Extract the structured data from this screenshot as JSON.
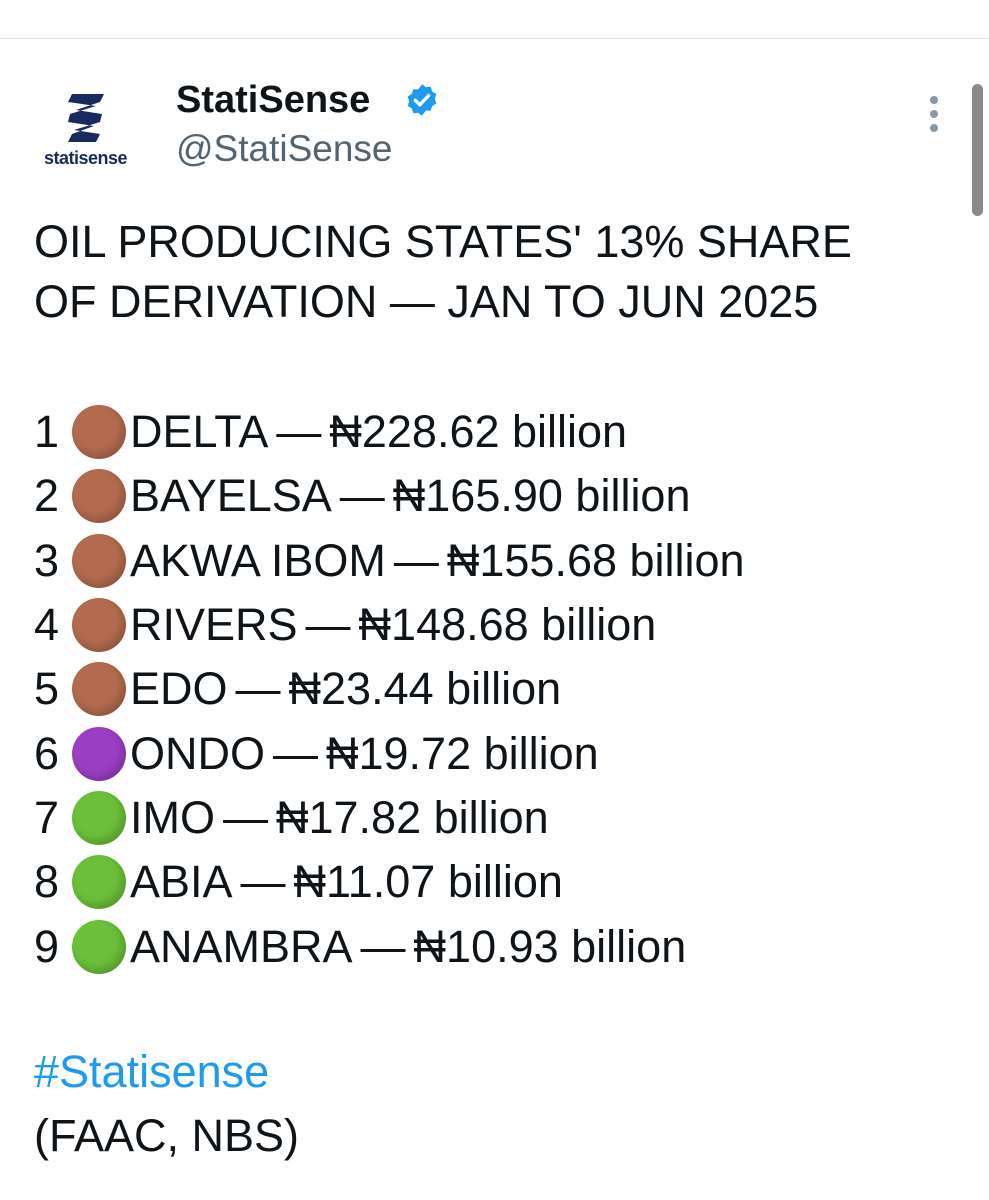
{
  "author": {
    "avatar_text": "statisense",
    "display_name": "StatiSense",
    "handle": "@StatiSense"
  },
  "tweet": {
    "title_line1": "OIL PRODUCING STATES' 13% SHARE",
    "title_line2": "OF DERIVATION — JAN TO JUN 2025",
    "items": [
      {
        "rank": "1",
        "color": "#b26b4f",
        "state": "DELTA",
        "sep": "—",
        "value": "₦228.62 billion"
      },
      {
        "rank": "2",
        "color": "#b26b4f",
        "state": "BAYELSA",
        "sep": "—",
        "value": "₦165.90 billion"
      },
      {
        "rank": "3",
        "color": "#b26b4f",
        "state": "AKWA IBOM",
        "sep": "—",
        "value": "₦155.68 billion"
      },
      {
        "rank": "4",
        "color": "#b26b4f",
        "state": "RIVERS",
        "sep": "—",
        "value": "₦148.68 billion"
      },
      {
        "rank": "5",
        "color": "#b26b4f",
        "state": "EDO",
        "sep": "—",
        "value": "₦23.44 billion"
      },
      {
        "rank": "6",
        "color": "#9a3fc4",
        "state": "ONDO",
        "sep": "—",
        "value": "₦19.72 billion"
      },
      {
        "rank": "7",
        "color": "#6bbf3a",
        "state": "IMO",
        "sep": "—",
        "value": "₦17.82 billion"
      },
      {
        "rank": "8",
        "color": "#6bbf3a",
        "state": "ABIA",
        "sep": "—",
        "value": "₦11.07 billion"
      },
      {
        "rank": "9",
        "color": "#6bbf3a",
        "state": "ANAMBRA",
        "sep": "—",
        "value": "₦10.93 billion"
      }
    ],
    "hashtag": "#Statisense",
    "source": "(FAAC, NBS)"
  },
  "icons": {
    "verified": "verified-badge-icon",
    "more": "more-options-icon",
    "logo": "statisense-logo-icon"
  },
  "colors": {
    "accent": "#1d9bf0",
    "brand": "#1b2a5e"
  }
}
